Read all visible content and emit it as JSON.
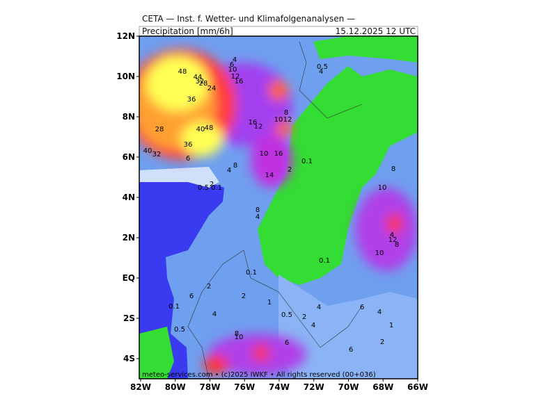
{
  "header": {
    "title": "CETA — Inst. f. Wetter- und Klimafolgenanalysen —",
    "field": "Precipitation [mm/6h]",
    "valid_time": "15.12.2025 12 UTC"
  },
  "axes": {
    "lat_labels": [
      "12N",
      "10N",
      "8N",
      "6N",
      "4N",
      "2N",
      "EQ",
      "2S",
      "4S"
    ],
    "lon_labels": [
      "82W",
      "80W",
      "78W",
      "76W",
      "74W",
      "72W",
      "70W",
      "68W",
      "66W"
    ]
  },
  "footer": "meteo-services.com • (c)2025 IWKF • All rights reserved (00+036)",
  "contour_labels": [
    "48",
    "44",
    "32",
    "28",
    "24",
    "36",
    "28",
    "40",
    "48",
    "36",
    "40",
    "32",
    "6",
    "4",
    "6",
    "10",
    "12",
    "16",
    "16",
    "12",
    "10",
    "12",
    "8",
    "10",
    "16",
    "8",
    "4",
    "14",
    "2",
    "0.1",
    "2",
    "0.5",
    "0.1",
    "8",
    "4",
    "0.5",
    "4",
    "8",
    "10",
    "4",
    "12",
    "8",
    "10",
    "0.1",
    "0.1",
    "2",
    "6",
    "2",
    "1",
    "0.1",
    "4",
    "0.5",
    "2",
    "4",
    "6",
    "4",
    "1",
    "0.5",
    "4",
    "8",
    "10",
    "6",
    "2",
    "6"
  ]
}
